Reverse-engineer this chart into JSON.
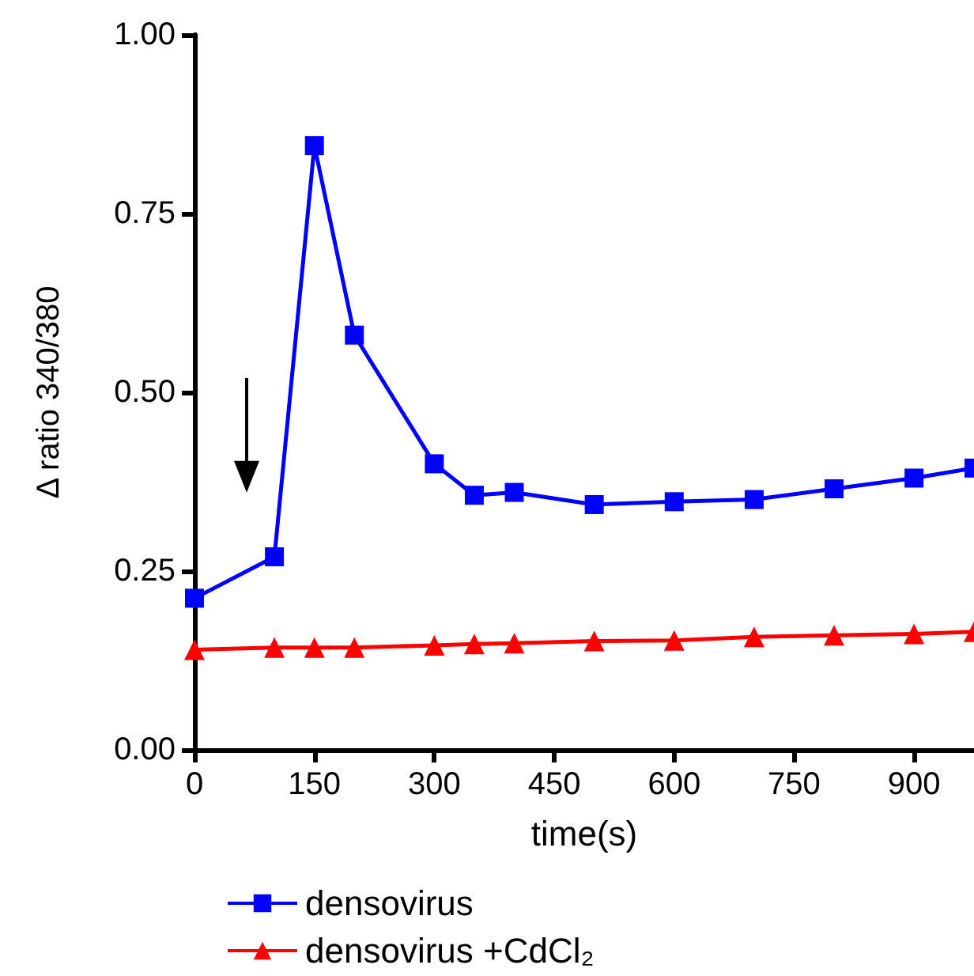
{
  "chart_data": {
    "type": "line",
    "xlabel": "time(s)",
    "ylabel": "Δ ratio 340/380",
    "xlim": [
      0,
      975
    ],
    "xticks": [
      0,
      150,
      300,
      450,
      600,
      750,
      900
    ],
    "ylim": [
      0,
      1
    ],
    "yticks": [
      {
        "value": 0,
        "label": "0.00"
      },
      {
        "value": 0.25,
        "label": "0.25"
      },
      {
        "value": 0.5,
        "label": "0.50"
      },
      {
        "value": 0.75,
        "label": "0.75"
      },
      {
        "value": 1,
        "label": "1.00"
      }
    ],
    "grid": false,
    "legend": "bottom",
    "line_style": "solid",
    "series": [
      {
        "name": "densovirus",
        "color": "#0000ff",
        "marker": "square",
        "x": [
          0,
          100,
          150,
          200,
          300,
          350,
          400,
          500,
          600,
          700,
          800,
          900,
          975
        ],
        "values": [
          0.212,
          0.27,
          0.845,
          0.58,
          0.4,
          0.356,
          0.36,
          0.343,
          0.347,
          0.35,
          0.365,
          0.38,
          0.394
        ]
      },
      {
        "name": "densovirus +CdCl₂",
        "color": "#ff0000",
        "marker": "triangle",
        "x": [
          0,
          100,
          150,
          200,
          300,
          350,
          400,
          500,
          600,
          700,
          800,
          900,
          975
        ],
        "values": [
          0.14,
          0.143,
          0.143,
          0.143,
          0.146,
          0.148,
          0.149,
          0.152,
          0.153,
          0.158,
          0.16,
          0.162,
          0.165
        ]
      }
    ]
  }
}
